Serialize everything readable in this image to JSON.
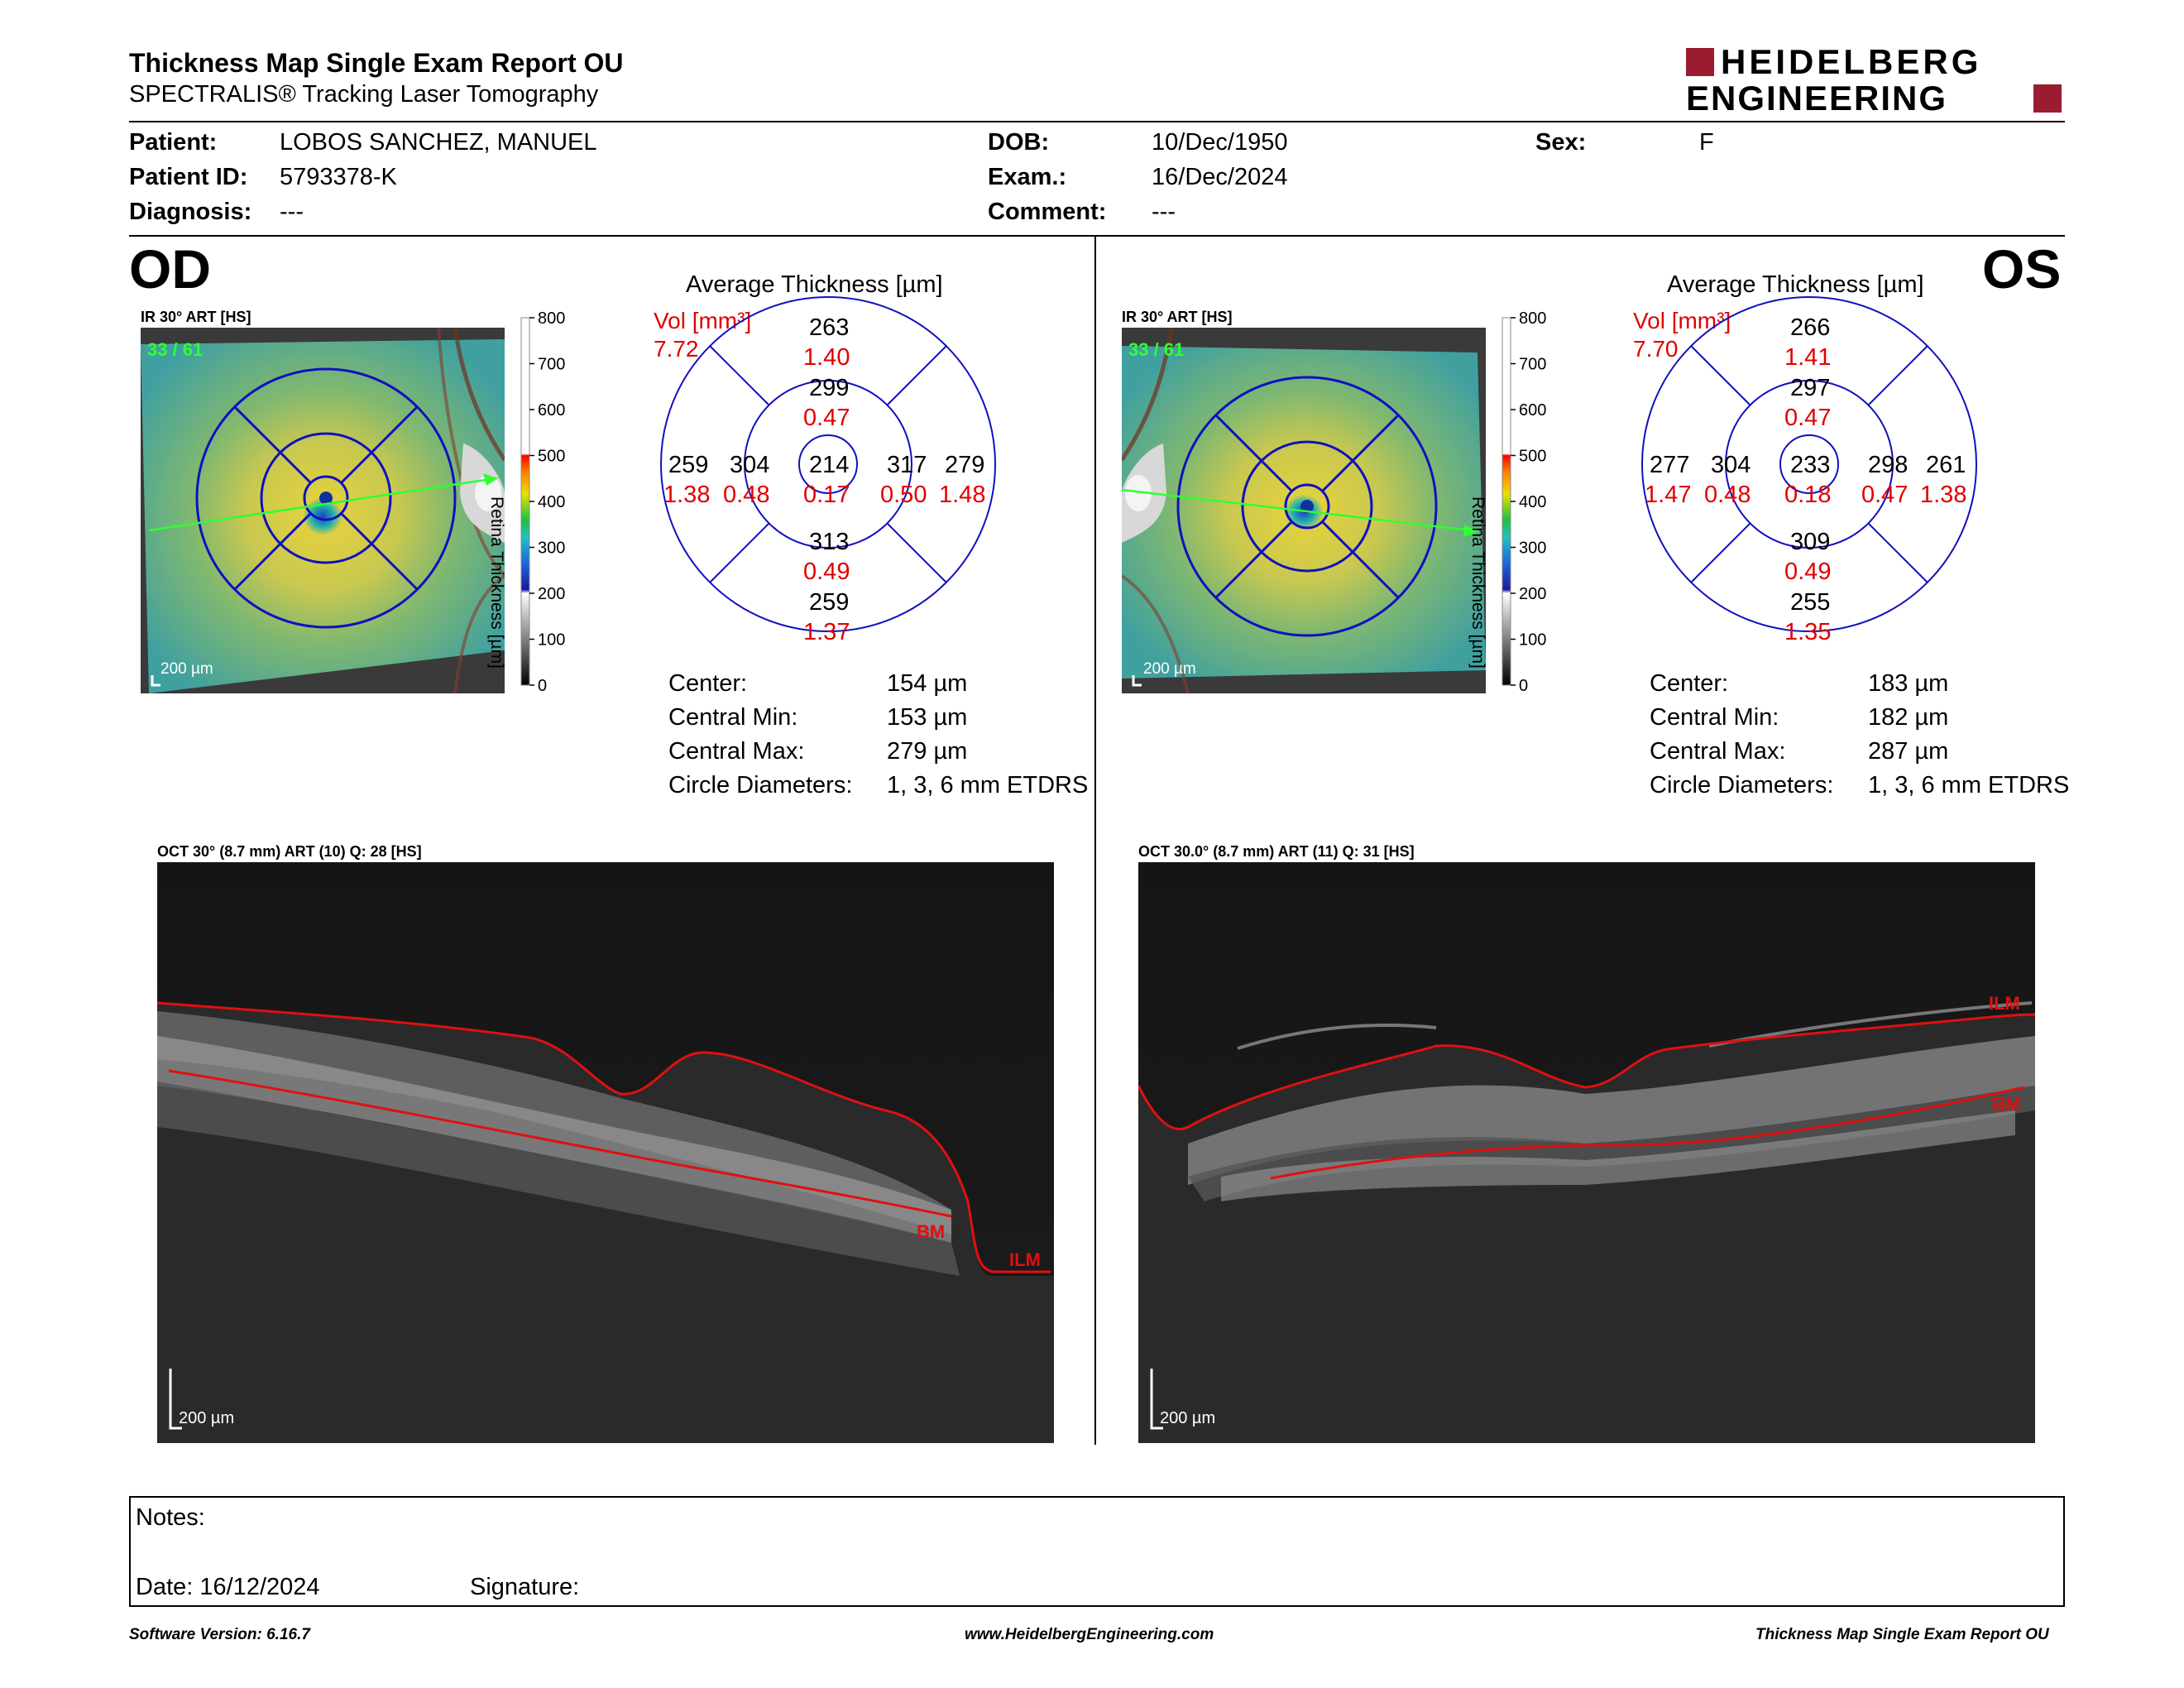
{
  "header": {
    "title": "Thickness Map Single Exam Report OU",
    "subtitle": "SPECTRALIS® Tracking Laser Tomography",
    "logo_line1": "HEIDELBERG",
    "logo_line2": "ENGINEERING",
    "brand_color": "#9b1b30"
  },
  "patient": {
    "patient_label": "Patient:",
    "patient_value": "LOBOS SANCHEZ, MANUEL",
    "id_label": "Patient ID:",
    "id_value": "5793378-K",
    "diagnosis_label": "Diagnosis:",
    "diagnosis_value": "---",
    "dob_label": "DOB:",
    "dob_value": "10/Dec/1950",
    "exam_label": "Exam.:",
    "exam_value": "16/Dec/2024",
    "comment_label": "Comment:",
    "comment_value": "---",
    "sex_label": "Sex:",
    "sex_value": "F"
  },
  "od": {
    "eye_label": "OD",
    "ir_label": "IR 30° ART [HS]",
    "frame_counter": "33 / 61",
    "scale_label": "200 µm",
    "colorbar_ticks": [
      "800",
      "700",
      "600",
      "500",
      "400",
      "300",
      "200",
      "100",
      "0"
    ],
    "colorbar_title": "Retina Thickness [µm]",
    "avg_title": "Average Thickness [µm]",
    "vol_label": "Vol [mm³]",
    "vol_total": "7.72",
    "etdrs": {
      "outer_sup": {
        "t": "263",
        "v": "1.40"
      },
      "inner_sup": {
        "t": "299",
        "v": "0.47"
      },
      "outer_temp": {
        "t": "259",
        "v": "1.38"
      },
      "inner_temp": {
        "t": "304",
        "v": "0.48"
      },
      "center": {
        "t": "214",
        "v": "0.17"
      },
      "inner_nasal": {
        "t": "317",
        "v": "0.50"
      },
      "outer_nasal": {
        "t": "279",
        "v": "1.48"
      },
      "inner_inf": {
        "t": "313",
        "v": "0.49"
      },
      "outer_inf": {
        "t": "259",
        "v": "1.37"
      }
    },
    "stats": [
      {
        "label": "Center:",
        "value": "154 µm"
      },
      {
        "label": "Central Min:",
        "value": "153 µm"
      },
      {
        "label": "Central Max:",
        "value": "279 µm"
      },
      {
        "label": "Circle Diameters:",
        "value": "1, 3, 6 mm ETDRS"
      }
    ],
    "oct_label": "OCT 30° (8.7 mm) ART (10) Q: 28 [HS]",
    "oct_scale": "200 µm",
    "bm_label": "BM",
    "ilm_label": "ILM"
  },
  "os": {
    "eye_label": "OS",
    "ir_label": "IR 30° ART [HS]",
    "frame_counter": "33 / 61",
    "scale_label": "200 µm",
    "colorbar_ticks": [
      "800",
      "700",
      "600",
      "500",
      "400",
      "300",
      "200",
      "100",
      "0"
    ],
    "colorbar_title": "Retina Thickness [µm]",
    "avg_title": "Average Thickness [µm]",
    "vol_label": "Vol [mm³]",
    "vol_total": "7.70",
    "etdrs": {
      "outer_sup": {
        "t": "266",
        "v": "1.41"
      },
      "inner_sup": {
        "t": "297",
        "v": "0.47"
      },
      "outer_temp": {
        "t": "277",
        "v": "1.47"
      },
      "inner_temp": {
        "t": "304",
        "v": "0.48"
      },
      "center": {
        "t": "233",
        "v": "0.18"
      },
      "inner_nasal": {
        "t": "298",
        "v": "0.47"
      },
      "outer_nasal": {
        "t": "261",
        "v": "1.38"
      },
      "inner_inf": {
        "t": "309",
        "v": "0.49"
      },
      "outer_inf": {
        "t": "255",
        "v": "1.35"
      }
    },
    "stats": [
      {
        "label": "Center:",
        "value": "183 µm"
      },
      {
        "label": "Central Min:",
        "value": "182 µm"
      },
      {
        "label": "Central Max:",
        "value": "287 µm"
      },
      {
        "label": "Circle Diameters:",
        "value": "1, 3, 6 mm ETDRS"
      }
    ],
    "oct_label": "OCT 30.0° (8.7 mm) ART (11) Q: 31 [HS]",
    "oct_scale": "200 µm",
    "bm_label": "BM",
    "ilm_label": "ILM"
  },
  "notes": {
    "notes_label": "Notes:",
    "date_label": "Date: 16/12/2024",
    "signature_label": "Signature:"
  },
  "footer": {
    "version": "Software Version: 6.16.7",
    "url": "www.HeidelbergEngineering.com",
    "report_name": "Thickness Map Single Exam Report OU"
  }
}
